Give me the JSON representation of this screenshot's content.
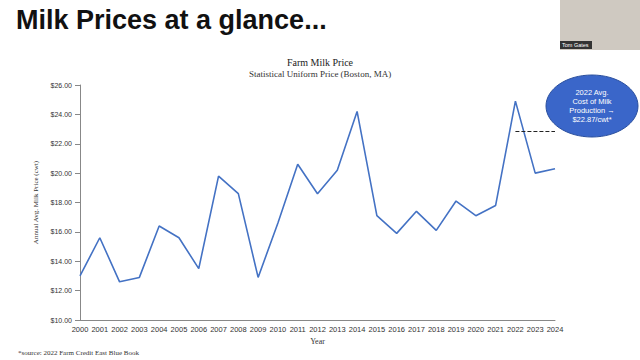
{
  "slide": {
    "heading": "Milk Prices at a glance...",
    "source": "*source: 2022 Farm Credit East Blue Book",
    "presenter": "Tom Gates"
  },
  "chart_data": {
    "type": "line",
    "title": "Farm Milk Price",
    "subtitle": "Statistical Uniform Price (Boston, MA)",
    "x_label": "Year",
    "y_label": "Annual Avg. Milk Price (cwt)",
    "categories": [
      "2000",
      "2001",
      "2002",
      "2003",
      "2004",
      "2005",
      "2006",
      "2007",
      "2008",
      "2009",
      "2010",
      "2011",
      "2012",
      "2013",
      "2014",
      "2015",
      "2016",
      "2017",
      "2018",
      "2019",
      "2020",
      "2021",
      "2022",
      "2023",
      "2024"
    ],
    "values": [
      13.0,
      15.6,
      12.6,
      12.9,
      16.4,
      15.6,
      13.5,
      19.8,
      18.6,
      12.9,
      16.6,
      20.6,
      18.6,
      20.2,
      24.2,
      17.1,
      15.9,
      17.4,
      16.1,
      18.1,
      17.1,
      17.8,
      24.9,
      20.0,
      20.3
    ],
    "color": "#4472c4",
    "marker": "none",
    "ylim": [
      10,
      26
    ],
    "yticks": [
      {
        "value": 10,
        "label": "$10.00"
      },
      {
        "value": 12,
        "label": "$12.00"
      },
      {
        "value": 14,
        "label": "$14.00"
      },
      {
        "value": 16,
        "label": "$16.00"
      },
      {
        "value": 18,
        "label": "$18.00"
      },
      {
        "value": 20,
        "label": "$20.00"
      },
      {
        "value": 22,
        "label": "$22.00"
      },
      {
        "value": 24,
        "label": "$24.00"
      },
      {
        "value": 26,
        "label": "$26.00"
      }
    ],
    "grid": false,
    "annotations": [
      {
        "text": "2022 Avg.\nCost of Milk\nProduction →\n$22.87/cwt*",
        "value": 22.87,
        "from": "2022",
        "to": "2024",
        "line_style": "dashed",
        "color": "#3a66c9"
      }
    ]
  }
}
